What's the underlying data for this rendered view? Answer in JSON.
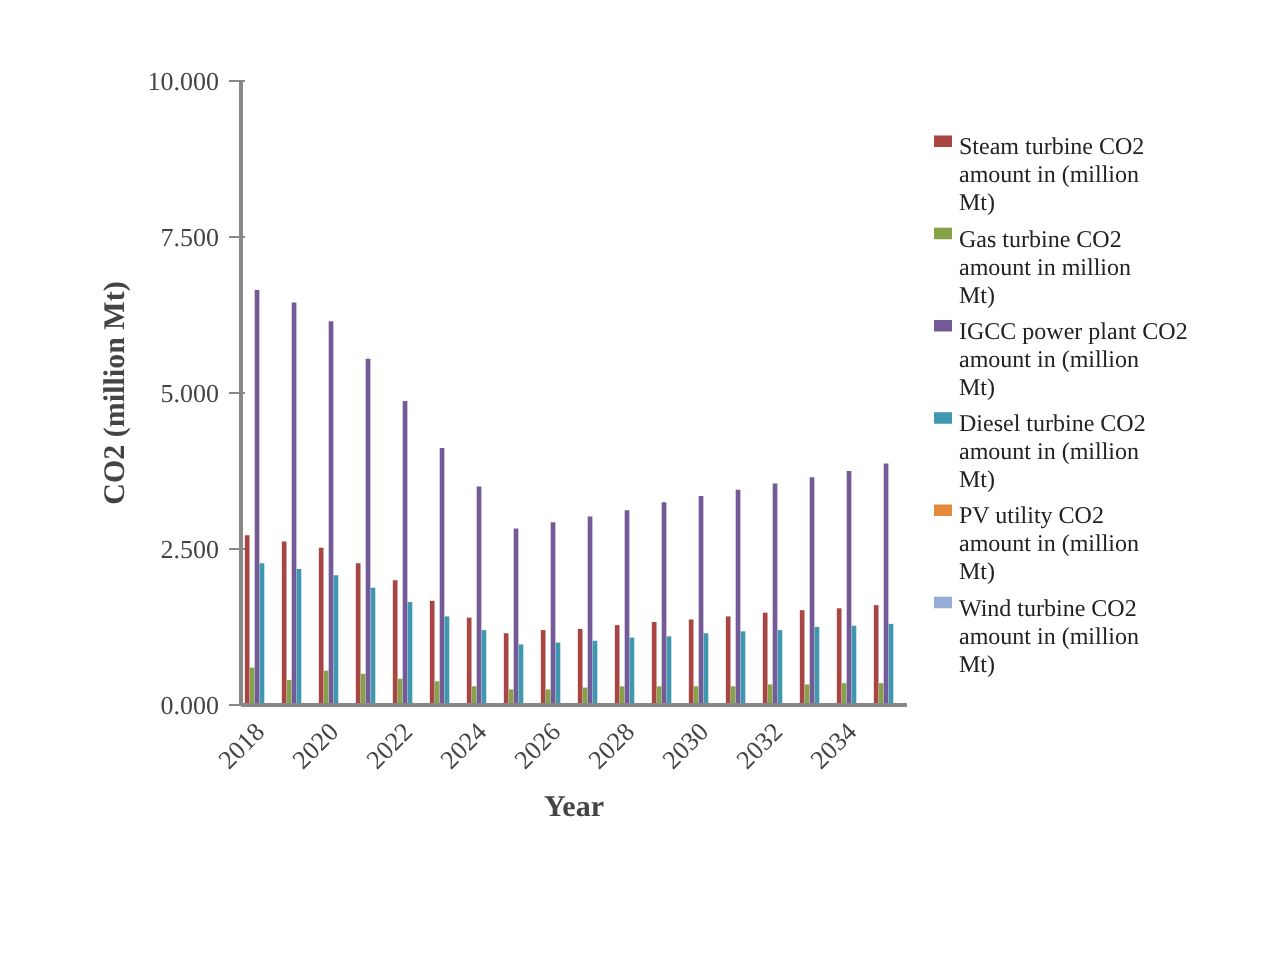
{
  "chart_data": {
    "type": "bar",
    "xlabel": "Year",
    "ylabel": "CO2 (million Mt)",
    "categories": [
      "2018",
      null,
      "2020",
      null,
      "2022",
      null,
      "2024",
      null,
      "2026",
      null,
      "2028",
      null,
      "2030",
      null,
      "2032",
      null,
      "2034",
      null
    ],
    "ylim": [
      0,
      10
    ],
    "yticks": [
      {
        "value": 0,
        "label": "0.000"
      },
      {
        "value": 2.5,
        "label": "2.500"
      },
      {
        "value": 5,
        "label": "5.000"
      },
      {
        "value": 7.5,
        "label": "7.500"
      },
      {
        "value": 10,
        "label": "10.000"
      }
    ],
    "grid": false,
    "legend": "right",
    "series": [
      {
        "name": "Steam turbine CO2 amount in (million Mt)",
        "color": "#a84643",
        "values": [
          2.72,
          2.62,
          2.52,
          2.27,
          2.0,
          1.67,
          1.4,
          1.15,
          1.2,
          1.22,
          1.28,
          1.33,
          1.37,
          1.42,
          1.48,
          1.52,
          1.55,
          1.6
        ]
      },
      {
        "name": "Gas turbine CO2 amount in million Mt)",
        "color": "#88a24a",
        "values": [
          0.6,
          0.4,
          0.55,
          0.5,
          0.42,
          0.38,
          0.3,
          0.25,
          0.25,
          0.28,
          0.3,
          0.3,
          0.3,
          0.3,
          0.33,
          0.33,
          0.35,
          0.35
        ]
      },
      {
        "name": "IGCC power plant CO2 amount in (million Mt)",
        "color": "#745b98",
        "values": [
          6.65,
          6.45,
          6.15,
          5.55,
          4.87,
          4.12,
          3.5,
          2.83,
          2.93,
          3.02,
          3.12,
          3.25,
          3.35,
          3.45,
          3.55,
          3.65,
          3.75,
          3.87
        ]
      },
      {
        "name": "Diesel turbine CO2 amount in (million Mt)",
        "color": "#3f98b0",
        "values": [
          2.27,
          2.18,
          2.08,
          1.88,
          1.65,
          1.42,
          1.2,
          0.97,
          1.0,
          1.03,
          1.08,
          1.1,
          1.15,
          1.18,
          1.2,
          1.25,
          1.27,
          1.3
        ]
      },
      {
        "name": "PV utility CO2 amount in (million Mt)",
        "color": "#e58a3c",
        "values": [
          0,
          0,
          0,
          0,
          0,
          0,
          0,
          0,
          0,
          0,
          0,
          0,
          0,
          0,
          0,
          0,
          0,
          0
        ]
      },
      {
        "name": "Wind turbine CO2 amount in (million Mt)",
        "color": "#95acd6",
        "values": [
          0,
          0,
          0,
          0,
          0,
          0,
          0,
          0,
          0,
          0,
          0,
          0,
          0,
          0,
          0,
          0,
          0,
          0
        ]
      }
    ]
  }
}
